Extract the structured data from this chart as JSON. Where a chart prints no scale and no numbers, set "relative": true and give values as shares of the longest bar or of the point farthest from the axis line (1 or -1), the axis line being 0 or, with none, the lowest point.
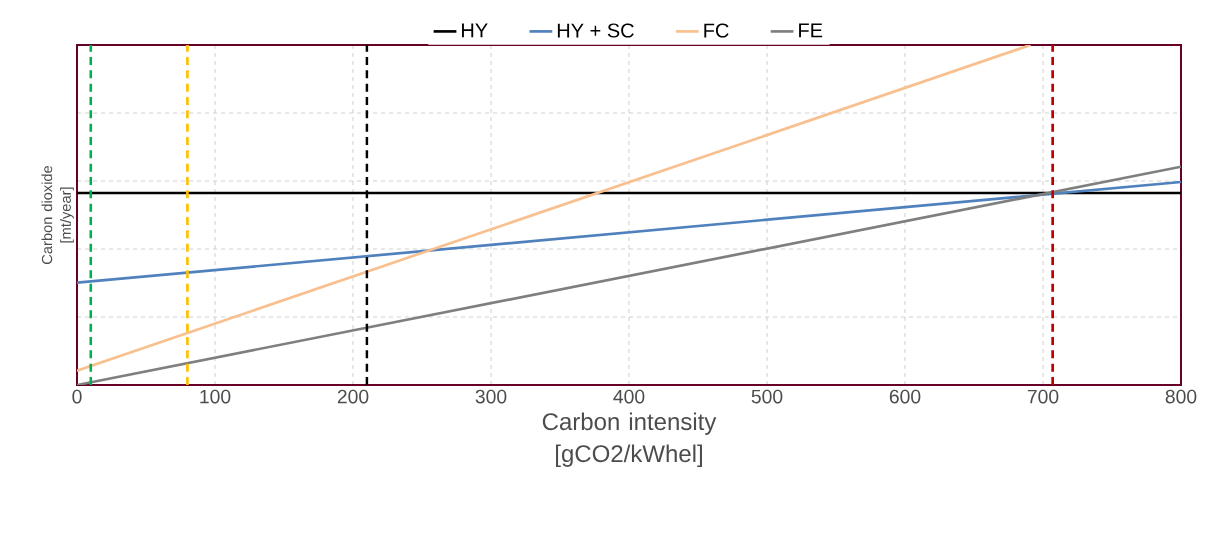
{
  "chart_data": {
    "type": "line",
    "relative": true,
    "xlabel": "Carbon intensity [gCO2/kWhel]",
    "ylabel": "Carbon dioxide [mt/year]",
    "xlim": [
      0,
      800
    ],
    "xticks": [
      0,
      100,
      200,
      300,
      400,
      500,
      600,
      700,
      800
    ],
    "grid": true,
    "legend": "top",
    "line_style": "solid",
    "series": [
      {
        "name": "HY",
        "color": "#000000",
        "x": [
          0,
          800
        ],
        "values": [
          0.565,
          0.565
        ]
      },
      {
        "name": "HY + SC",
        "color": "#4f81bd",
        "x": [
          0,
          800
        ],
        "values": [
          0.301,
          0.597
        ]
      },
      {
        "name": "FC",
        "color": "#f9c08f",
        "x": [
          0,
          691
        ],
        "values": [
          0.042,
          1
        ]
      },
      {
        "name": "FE",
        "color": "#7f7f7f",
        "x": [
          0,
          800
        ],
        "values": [
          0,
          0.642
        ]
      }
    ],
    "ref_lines": [
      {
        "axis": "x",
        "value": 10,
        "color": "#00b050",
        "line_style": "dashed"
      },
      {
        "axis": "x",
        "value": 80,
        "color": "#ffc000",
        "line_style": "dashed"
      },
      {
        "axis": "x",
        "value": 210,
        "color": "#000000",
        "line_style": "dashed"
      },
      {
        "axis": "x",
        "value": 707,
        "color": "#c00000",
        "line_style": "dashed"
      }
    ]
  }
}
